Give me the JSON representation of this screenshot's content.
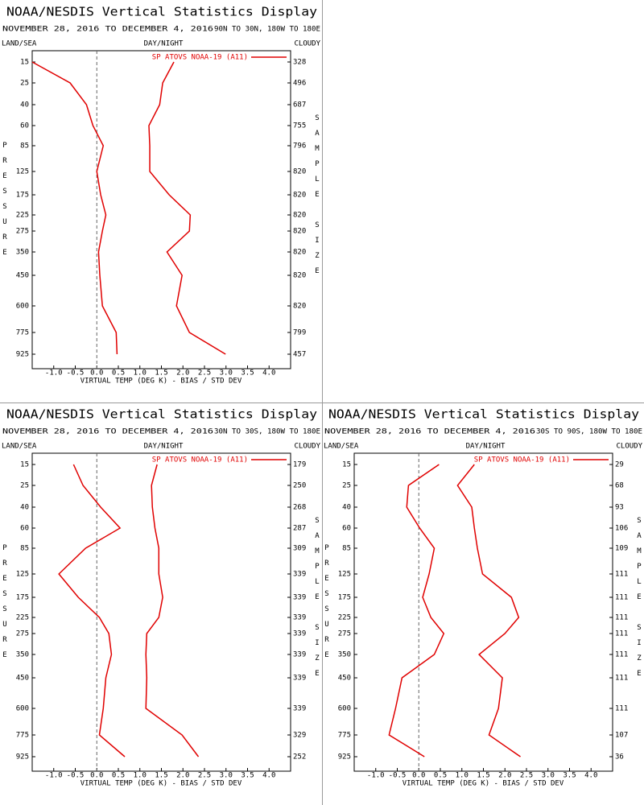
{
  "chart_data": [
    {
      "type": "line",
      "title": "NOAA/NESDIS Vertical Statistics Display",
      "subtitle": "NOVEMBER 28, 2016 TO DECEMBER 4, 2016",
      "region": "90N TO 30N, 180W TO 180E",
      "left_header": "LAND/SEA",
      "center_header": "DAY/NIGHT",
      "right_header": "CLOUDY",
      "ylabel": "PRESSURE",
      "y2label": "SAMPLE SIZE",
      "xlabel": "VIRTUAL TEMP (DEG K) - BIAS / STD DEV",
      "pressure_levels": [
        15,
        25,
        40,
        60,
        85,
        125,
        175,
        225,
        275,
        350,
        450,
        600,
        775,
        925
      ],
      "sample_size": [
        328,
        496,
        687,
        755,
        796,
        820,
        820,
        820,
        820,
        820,
        820,
        820,
        799,
        457
      ],
      "xlim": [
        -1.5,
        4.5
      ],
      "xticks": [
        {
          "value": -1,
          "label": "-1.0"
        },
        -0.5,
        {
          "value": 0,
          "label": "0.0"
        },
        0.5,
        {
          "value": 1,
          "label": "1.0"
        },
        1.5,
        {
          "value": 2,
          "label": "2.0"
        },
        2.5,
        {
          "value": 3,
          "label": "3.0"
        },
        3.5,
        {
          "value": 4,
          "label": "4.0"
        }
      ],
      "vline": 0,
      "series": [
        {
          "name": "SP ATOVS NOAA-19 (A11)",
          "color": "#e00000",
          "values": [
            -1.5,
            -0.62,
            -0.24,
            -0.09,
            0.15,
            0.0,
            0.09,
            0.21,
            0.13,
            0.04,
            0.07,
            0.13,
            0.45,
            0.47
          ]
        },
        {
          "color": "#e00000",
          "values": [
            1.79,
            1.53,
            1.46,
            1.21,
            1.23,
            1.23,
            1.68,
            2.17,
            2.15,
            1.63,
            1.98,
            1.85,
            2.15,
            2.99
          ]
        }
      ]
    },
    {
      "type": "line",
      "title": "NOAA/NESDIS Vertical Statistics Display",
      "subtitle": "NOVEMBER 28, 2016 TO DECEMBER 4, 2016",
      "region": "30N TO 30S, 180W TO 180E",
      "left_header": "LAND/SEA",
      "center_header": "DAY/NIGHT",
      "right_header": "CLOUDY",
      "ylabel": "PRESSURE",
      "y2label": "SAMPLE SIZE",
      "xlabel": "VIRTUAL TEMP (DEG K) - BIAS / STD DEV",
      "pressure_levels": [
        15,
        25,
        40,
        60,
        85,
        125,
        175,
        225,
        275,
        350,
        450,
        600,
        775,
        925
      ],
      "sample_size": [
        179,
        250,
        268,
        287,
        309,
        339,
        339,
        339,
        339,
        339,
        339,
        339,
        329,
        252
      ],
      "xlim": [
        -1.5,
        4.5
      ],
      "xticks": [
        {
          "value": -1,
          "label": "-1.0"
        },
        -0.5,
        {
          "value": 0,
          "label": "0.0"
        },
        0.5,
        {
          "value": 1,
          "label": "1.0"
        },
        1.5,
        {
          "value": 2,
          "label": "2.0"
        },
        2.5,
        {
          "value": 3,
          "label": "3.0"
        },
        3.5,
        {
          "value": 4,
          "label": "4.0"
        }
      ],
      "vline": 0,
      "series": [
        {
          "name": "SP ATOVS NOAA-19 (A11)",
          "color": "#e00000",
          "values": [
            -0.54,
            -0.32,
            0.09,
            0.54,
            -0.26,
            -0.88,
            -0.43,
            0.06,
            0.28,
            0.34,
            0.21,
            0.15,
            0.06,
            0.65
          ]
        },
        {
          "color": "#e00000",
          "values": [
            1.4,
            1.27,
            1.29,
            1.35,
            1.44,
            1.44,
            1.53,
            1.44,
            1.16,
            1.14,
            1.16,
            1.14,
            1.98,
            2.36
          ]
        }
      ]
    },
    {
      "type": "line",
      "title": "NOAA/NESDIS Vertical Statistics Display",
      "subtitle": "NOVEMBER 28, 2016 TO DECEMBER 4, 2016",
      "region": "30S TO 90S, 180W TO 180E",
      "left_header": "LAND/SEA",
      "center_header": "DAY/NIGHT",
      "right_header": "CLOUDY",
      "ylabel": "PRESSURE",
      "y2label": "SAMPLE SIZE",
      "xlabel": "VIRTUAL TEMP (DEG K) - BIAS / STD DEV",
      "pressure_levels": [
        15,
        25,
        40,
        60,
        85,
        125,
        175,
        225,
        275,
        350,
        450,
        600,
        775,
        925
      ],
      "sample_size": [
        29,
        68,
        93,
        106,
        109,
        111,
        111,
        111,
        111,
        111,
        111,
        111,
        107,
        36
      ],
      "xlim": [
        -1.5,
        4.5
      ],
      "xticks": [
        {
          "value": -1,
          "label": "-1.0"
        },
        -0.5,
        {
          "value": 0,
          "label": "0.0"
        },
        0.5,
        {
          "value": 1,
          "label": "1.0"
        },
        1.5,
        {
          "value": 2,
          "label": "2.0"
        },
        2.5,
        {
          "value": 3,
          "label": "3.0"
        },
        3.5,
        {
          "value": 4,
          "label": "4.0"
        }
      ],
      "vline": 0,
      "series": [
        {
          "name": "SP ATOVS NOAA-19 (A11)",
          "color": "#e00000",
          "values": [
            0.47,
            -0.24,
            -0.28,
            0.02,
            0.36,
            0.24,
            0.09,
            0.28,
            0.58,
            0.36,
            -0.39,
            -0.54,
            -0.69,
            0.13
          ]
        },
        {
          "color": "#e00000",
          "values": [
            1.29,
            0.9,
            1.23,
            1.29,
            1.36,
            1.48,
            2.15,
            2.32,
            2.0,
            1.4,
            1.94,
            1.85,
            1.63,
            2.36
          ]
        }
      ]
    }
  ]
}
